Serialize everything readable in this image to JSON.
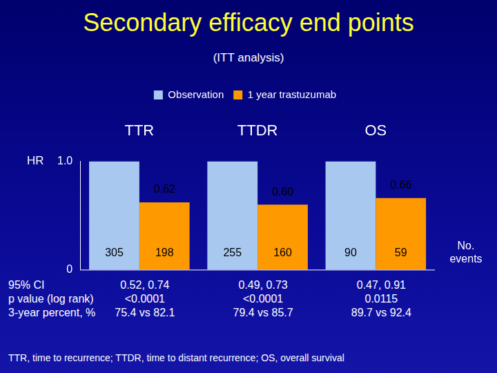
{
  "chart_data": {
    "type": "bar",
    "title": "Secondary efficacy end points",
    "subtitle": "(ITT analysis)",
    "y_label": "HR",
    "categories": [
      "TTR",
      "TTDR",
      "OS"
    ],
    "series": [
      {
        "name": "Observation",
        "color": "#a8c8f0",
        "values": [
          1,
          1,
          1
        ],
        "events": [
          305,
          255,
          90
        ]
      },
      {
        "name": "1 year trastuzumab",
        "color": "#ff9900",
        "values": [
          0.62,
          0.6,
          0.66
        ],
        "value_labels": [
          "0.62",
          "0.60",
          "0.66"
        ],
        "data_labels": true,
        "events": [
          198,
          160,
          59
        ]
      }
    ],
    "events_label": "No. events",
    "ylim": [
      0,
      1
    ],
    "yticks": [
      0,
      {
        "value": 1,
        "label": "1.0"
      }
    ],
    "grid": false,
    "legend": "top",
    "stats": {
      "row_labels": [
        "95% CI",
        "p value (log rank)",
        "3-year percent, %"
      ],
      "rows": [
        [
          "0.52, 0.74",
          "0.49, 0.73",
          "0.47, 0.91"
        ],
        [
          "<0.0001",
          "<0.0001",
          "0.0115"
        ],
        [
          "75.4 vs 82.1",
          "79.4 vs 85.7",
          "89.7 vs 92.4"
        ]
      ]
    },
    "footnote": "TTR, time to recurrence; TTDR, time to distant recurrence; OS, overall survival"
  }
}
